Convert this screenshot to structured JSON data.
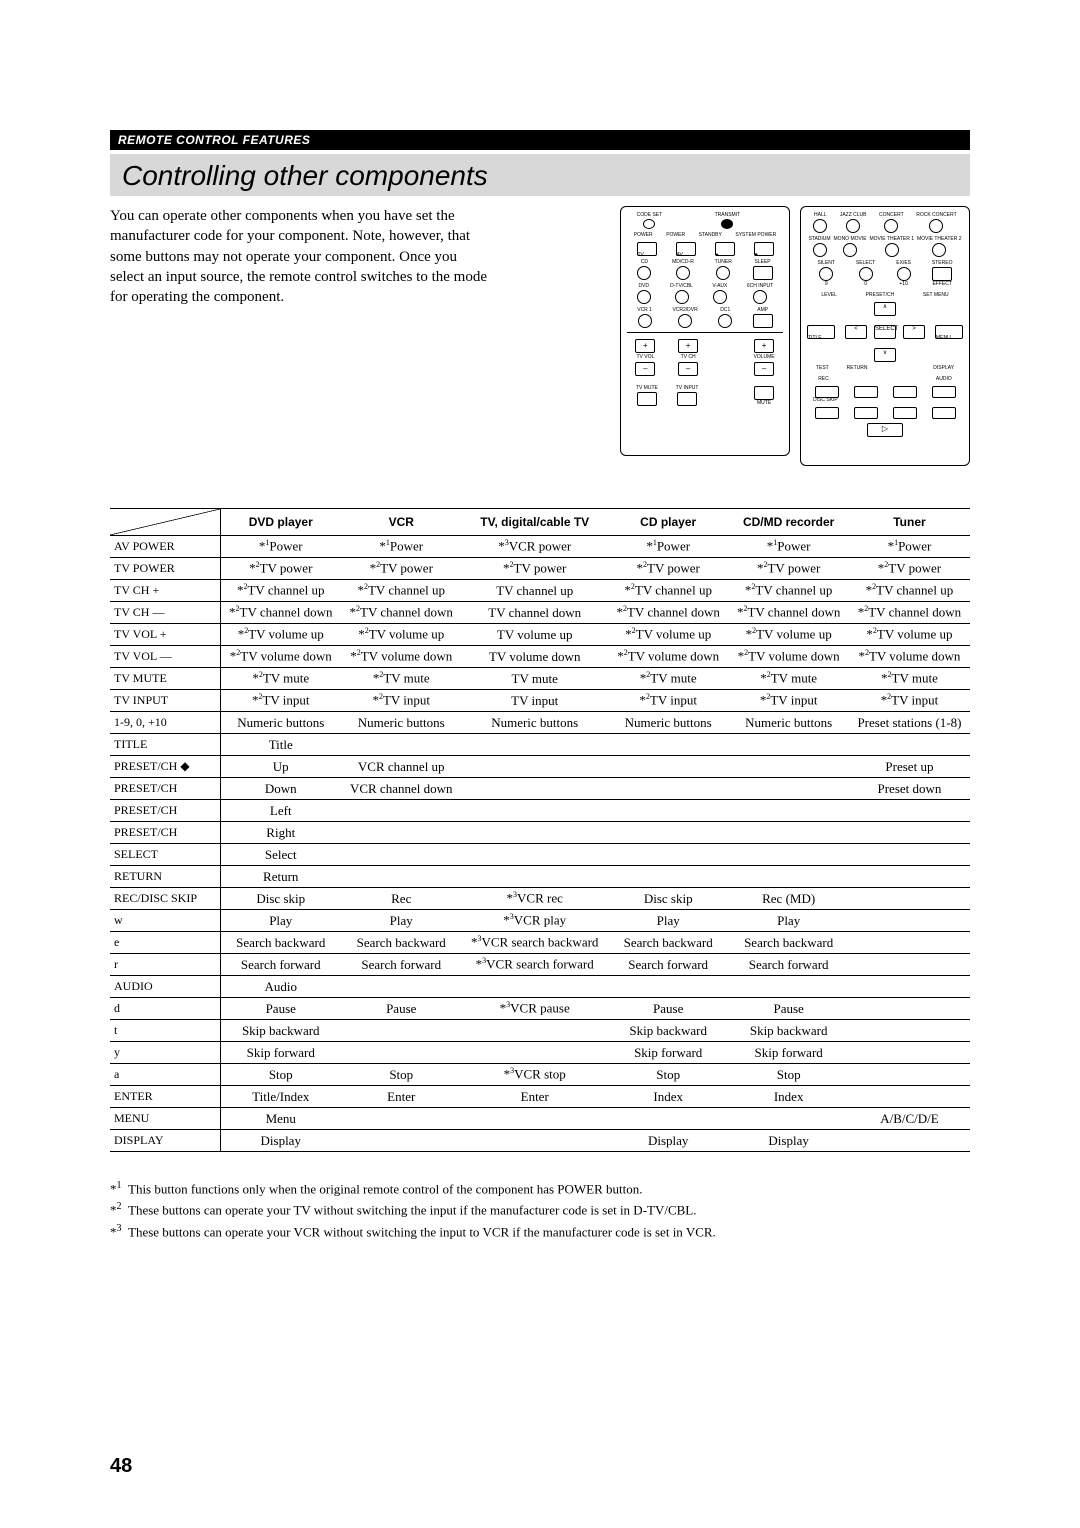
{
  "section_header": "REMOTE CONTROL FEATURES",
  "title": "Controlling other components",
  "intro": "You can operate other components when you have set the manufacturer code for your component. Note, however, that some buttons may not operate your component. Once you select an input source, the remote control switches to the mode for operating the component.",
  "columns": [
    "DVD player",
    "VCR",
    "TV, digital/cable TV",
    "CD player",
    "CD/MD recorder",
    "Tuner"
  ],
  "rows": [
    {
      "h": "AV POWER",
      "c": [
        "*¹Power",
        "*¹Power",
        "*³VCR power",
        "*¹Power",
        "*¹Power",
        "*¹Power"
      ]
    },
    {
      "h": "TV POWER",
      "c": [
        "*²TV power",
        "*²TV power",
        "*²TV power",
        "*²TV power",
        "*²TV power",
        "*²TV power"
      ]
    },
    {
      "h": "TV CH +",
      "c": [
        "*²TV channel up",
        "*²TV channel up",
        "TV channel up",
        "*²TV channel up",
        "*²TV channel up",
        "*²TV channel up"
      ]
    },
    {
      "h": "TV CH —",
      "c": [
        "*²TV channel down",
        "*²TV channel down",
        "TV channel down",
        "*²TV channel down",
        "*²TV channel down",
        "*²TV channel down"
      ]
    },
    {
      "h": "TV VOL +",
      "c": [
        "*²TV volume up",
        "*²TV volume up",
        "TV volume up",
        "*²TV volume up",
        "*²TV volume up",
        "*²TV volume up"
      ]
    },
    {
      "h": "TV VOL —",
      "c": [
        "*²TV volume down",
        "*²TV volume down",
        "TV volume down",
        "*²TV volume down",
        "*²TV volume down",
        "*²TV volume down"
      ]
    },
    {
      "h": "TV MUTE",
      "c": [
        "*²TV mute",
        "*²TV mute",
        "TV mute",
        "*²TV mute",
        "*²TV mute",
        "*²TV mute"
      ]
    },
    {
      "h": "TV INPUT",
      "c": [
        "*²TV input",
        "*²TV input",
        "TV input",
        "*²TV input",
        "*²TV input",
        "*²TV input"
      ]
    },
    {
      "h": "1-9, 0, +10",
      "c": [
        "Numeric buttons",
        "Numeric buttons",
        "Numeric buttons",
        "Numeric buttons",
        "Numeric buttons",
        "Preset stations (1-8)"
      ]
    },
    {
      "h": "TITLE",
      "c": [
        "Title",
        "",
        "",
        "",
        "",
        ""
      ]
    },
    {
      "h": "PRESET/CH ◆",
      "c": [
        "Up",
        "VCR channel up",
        "",
        "",
        "",
        "Preset up"
      ]
    },
    {
      "h": "PRESET/CH",
      "c": [
        "Down",
        "VCR channel down",
        "",
        "",
        "",
        "Preset down"
      ]
    },
    {
      "h": "PRESET/CH",
      "c": [
        "Left",
        "",
        "",
        "",
        "",
        ""
      ]
    },
    {
      "h": "PRESET/CH",
      "c": [
        "Right",
        "",
        "",
        "",
        "",
        ""
      ]
    },
    {
      "h": "SELECT",
      "c": [
        "Select",
        "",
        "",
        "",
        "",
        ""
      ]
    },
    {
      "h": "RETURN",
      "c": [
        "Return",
        "",
        "",
        "",
        "",
        ""
      ]
    },
    {
      "h": "REC/DISC SKIP",
      "c": [
        "Disc skip",
        "Rec",
        "*³VCR rec",
        "Disc skip",
        "Rec (MD)",
        ""
      ]
    },
    {
      "h": "w",
      "c": [
        "Play",
        "Play",
        "*³VCR play",
        "Play",
        "Play",
        ""
      ]
    },
    {
      "h": "e",
      "c": [
        "Search backward",
        "Search backward",
        "*³VCR search backward",
        "Search backward",
        "Search backward",
        ""
      ]
    },
    {
      "h": "r",
      "c": [
        "Search forward",
        "Search forward",
        "*³VCR search forward",
        "Search forward",
        "Search forward",
        ""
      ]
    },
    {
      "h": "AUDIO",
      "c": [
        "Audio",
        "",
        "",
        "",
        "",
        ""
      ]
    },
    {
      "h": "d",
      "c": [
        "Pause",
        "Pause",
        "*³VCR pause",
        "Pause",
        "Pause",
        ""
      ]
    },
    {
      "h": "t",
      "c": [
        "Skip backward",
        "",
        "",
        "Skip backward",
        "Skip backward",
        ""
      ]
    },
    {
      "h": "y",
      "c": [
        "Skip forward",
        "",
        "",
        "Skip forward",
        "Skip forward",
        ""
      ]
    },
    {
      "h": "a",
      "c": [
        "Stop",
        "Stop",
        "*³VCR stop",
        "Stop",
        "Stop",
        ""
      ]
    },
    {
      "h": "ENTER",
      "c": [
        "Title/Index",
        "Enter",
        "Enter",
        "Index",
        "Index",
        ""
      ]
    },
    {
      "h": "MENU",
      "c": [
        "Menu",
        "",
        "",
        "",
        "",
        "A/B/C/D/E"
      ]
    },
    {
      "h": "DISPLAY",
      "c": [
        "Display",
        "",
        "",
        "Display",
        "Display",
        ""
      ]
    }
  ],
  "footnotes": [
    {
      "n": "*1",
      "t": "This button functions only when the original remote control of the component has POWER button."
    },
    {
      "n": "*2",
      "t": "These buttons can operate your TV without switching the input if the manufacturer code is set in D-TV/CBL."
    },
    {
      "n": "*3",
      "t": "These buttons can operate your VCR without switching the input to VCR if the manufacturer code is set in VCR."
    }
  ],
  "page_number": "48",
  "remote_left": {
    "top_labels": [
      "CODE SET",
      "",
      "TRANSMIT",
      ""
    ],
    "row1_labels": [
      "POWER",
      "POWER",
      "STANDBY",
      "SYSTEM POWER"
    ],
    "row1b_labels": [
      "TV",
      "AV",
      "●",
      "■"
    ],
    "row2_labels": [
      "CD",
      "MD/CD-R",
      "TUNER",
      "SLEEP"
    ],
    "row3_labels": [
      "DVD",
      "D-TV/CBL",
      "V-AUX",
      "6CH INPUT"
    ],
    "row4_labels": [
      "VCR 1",
      "VCR2/DVR",
      "DC1",
      "AMP"
    ],
    "vol_labels": [
      "TV VOL",
      "TV CH",
      "VOLUME"
    ],
    "bottom_labels": [
      "TV MUTE",
      "TV INPUT",
      "MUTE"
    ]
  },
  "remote_right": {
    "row1_labels": [
      "HALL",
      "JAZZ CLUB",
      "CONCERT",
      "ROCK CONCERT"
    ],
    "row2_labels": [
      "STADIUM",
      "MONO MOVIE",
      "MOVIE THEATER 1",
      "MOVIE THEATER 2"
    ],
    "row3_labels": [
      "SILENT",
      "SELECT",
      "EX/ES",
      "STEREO"
    ],
    "row3b_labels": [
      "9",
      "0",
      "+10",
      "EFFECT"
    ],
    "mid_labels": [
      "LEVEL",
      "PRESET/CH",
      "SET MENU"
    ],
    "side_labels": [
      "TITLE",
      "MENU"
    ],
    "dpad": {
      "up": "∧",
      "down": "∨",
      "left": "<",
      "right": ">",
      "center": "SELECT"
    },
    "under_labels": [
      "TEST",
      "RETURN",
      "DISPLAY"
    ],
    "rec_labels": [
      "REC",
      "",
      "",
      "AUDIO"
    ],
    "skip_label": "DISC SKIP",
    "play_label": "▷"
  }
}
